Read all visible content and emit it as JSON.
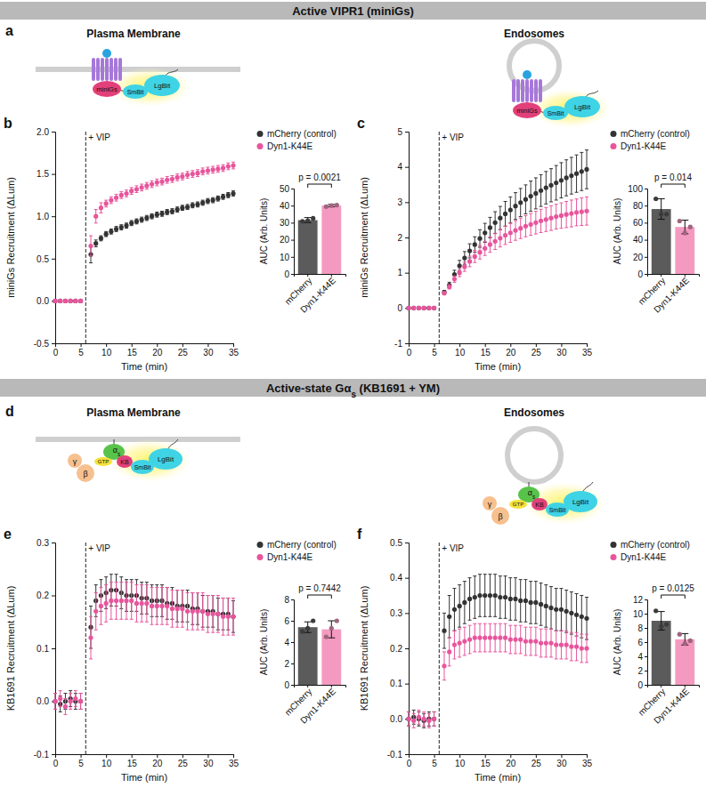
{
  "sections": [
    {
      "title": [
        {
          "text": "Active VIPR1 (miniGs)"
        }
      ],
      "panel": "a",
      "diagrams": [
        {
          "title": "Plasma Membrane",
          "labels": {
            "g": "miniGs",
            "sm": "SmBit",
            "lg": "LgBit"
          }
        },
        {
          "title": "Endosomes",
          "labels": {
            "g": "miniGs",
            "sm": "SmBit",
            "lg": "LgBit"
          }
        }
      ]
    },
    {
      "title": [
        {
          "text": "Active-state Gα"
        },
        {
          "text": "s",
          "sub": true
        },
        {
          "text": " (KB1691 + YM)"
        }
      ],
      "panel": "d",
      "diagrams": [
        {
          "title": "Plasma Membrane",
          "labels": {
            "gamma": "γ",
            "beta": "β",
            "alpha": "α",
            "alpha_sub": "s",
            "gtp": "GTP",
            "kb": "KB",
            "sm": "SmBit",
            "lg": "LgBit"
          }
        },
        {
          "title": "Endosomes",
          "labels": {
            "gamma": "γ",
            "beta": "β",
            "alpha": "α",
            "alpha_sub": "s",
            "gtp": "GTP",
            "kb": "KB",
            "sm": "SmBit",
            "lg": "LgBit"
          }
        }
      ]
    }
  ],
  "chart_data": [
    {
      "type": "scatter",
      "panel": "b",
      "xlabel": "Time (min)",
      "ylabel": "miniGs Recruitment (ΔLum)",
      "legend": "right",
      "marker": "circle",
      "x": [
        0,
        1,
        2,
        3,
        4,
        5,
        7,
        8,
        9,
        10,
        11,
        12,
        13,
        14,
        15,
        16,
        17,
        18,
        19,
        20,
        21,
        22,
        23,
        24,
        25,
        26,
        27,
        28,
        29,
        30,
        31,
        32,
        33,
        34,
        35
      ],
      "xlim": [
        0,
        35
      ],
      "xticks": [
        0,
        5,
        10,
        15,
        20,
        25,
        30,
        35
      ],
      "ylim": [
        -0.5,
        2
      ],
      "yticks": [
        -0.5,
        {
          "value": 0,
          "label": "0.0"
        },
        0.5,
        {
          "value": 1,
          "label": "1.0"
        },
        1.5,
        {
          "value": 2,
          "label": "2.0"
        }
      ],
      "annotations": [
        {
          "text": "+ VIP",
          "x": 6
        }
      ],
      "series": [
        {
          "name": "mCherry (control)",
          "color": "#333333",
          "values": [
            0,
            0,
            0,
            0,
            0,
            0,
            0.55,
            0.68,
            0.74,
            0.79,
            0.82,
            0.85,
            0.87,
            0.89,
            0.92,
            0.94,
            0.96,
            0.98,
            1.0,
            1.02,
            1.03,
            1.05,
            1.06,
            1.08,
            1.1,
            1.11,
            1.13,
            1.14,
            1.16,
            1.18,
            1.19,
            1.21,
            1.23,
            1.25,
            1.27
          ],
          "errors": [
            0.01,
            0.01,
            0.01,
            0.01,
            0.01,
            0.01,
            0.1,
            0.04,
            0.03,
            0.03,
            0.03,
            0.03,
            0.03,
            0.03,
            0.03,
            0.03,
            0.03,
            0.03,
            0.03,
            0.03,
            0.03,
            0.03,
            0.03,
            0.03,
            0.03,
            0.03,
            0.03,
            0.03,
            0.03,
            0.03,
            0.03,
            0.03,
            0.03,
            0.03,
            0.03
          ]
        },
        {
          "name": "Dyn1-K44E",
          "color": "#e8559c",
          "values": [
            0,
            0,
            0,
            0,
            0,
            0,
            0.65,
            1.0,
            1.1,
            1.15,
            1.19,
            1.22,
            1.25,
            1.27,
            1.3,
            1.32,
            1.34,
            1.36,
            1.38,
            1.4,
            1.41,
            1.43,
            1.44,
            1.46,
            1.47,
            1.49,
            1.5,
            1.51,
            1.53,
            1.54,
            1.55,
            1.56,
            1.57,
            1.59,
            1.6
          ],
          "errors": [
            0.01,
            0.01,
            0.01,
            0.01,
            0.01,
            0.01,
            0.12,
            0.08,
            0.06,
            0.04,
            0.04,
            0.04,
            0.04,
            0.04,
            0.04,
            0.04,
            0.04,
            0.04,
            0.04,
            0.04,
            0.04,
            0.04,
            0.04,
            0.04,
            0.04,
            0.04,
            0.04,
            0.04,
            0.04,
            0.04,
            0.04,
            0.04,
            0.04,
            0.04,
            0.04
          ]
        }
      ]
    },
    {
      "type": "bar",
      "ylabel": "AUC (Arb. Units)",
      "categories": [
        "mCherry",
        "Dyn1-K44E"
      ],
      "values": [
        31.5,
        40
      ],
      "errors": [
        1.5,
        0.7
      ],
      "colors": [
        "#5b5b5b",
        "#f49ac1"
      ],
      "replicates": [
        [
          30.8,
          31.2,
          32.6
        ],
        [
          39.4,
          40.0,
          40.3
        ]
      ],
      "ylim": [
        0,
        50
      ],
      "yticks": [
        0,
        10,
        20,
        30,
        40,
        50
      ],
      "annotations": [
        {
          "text": "p = 0.0021"
        }
      ]
    },
    {
      "type": "scatter",
      "panel": "c",
      "xlabel": "Time (min)",
      "ylabel": "miniGs Recruitment (ΔLum)",
      "legend": "right",
      "marker": "circle",
      "x": [
        0,
        1,
        2,
        3,
        4,
        5,
        7,
        8,
        9,
        10,
        11,
        12,
        13,
        14,
        15,
        16,
        17,
        18,
        19,
        20,
        21,
        22,
        23,
        24,
        25,
        26,
        27,
        28,
        29,
        30,
        31,
        32,
        33,
        34,
        35
      ],
      "xlim": [
        0,
        35
      ],
      "xticks": [
        0,
        5,
        10,
        15,
        20,
        25,
        30,
        35
      ],
      "ylim": [
        -1,
        5
      ],
      "yticks": [
        -1,
        0,
        1,
        2,
        3,
        4,
        5
      ],
      "annotations": [
        {
          "text": "+ VIP",
          "x": 6
        }
      ],
      "series": [
        {
          "name": "mCherry (control)",
          "color": "#333333",
          "values": [
            0,
            0,
            0,
            0,
            0,
            0,
            0.45,
            0.65,
            0.95,
            1.2,
            1.42,
            1.62,
            1.8,
            1.97,
            2.13,
            2.28,
            2.42,
            2.55,
            2.67,
            2.78,
            2.89,
            2.99,
            3.08,
            3.17,
            3.25,
            3.33,
            3.41,
            3.48,
            3.55,
            3.62,
            3.69,
            3.75,
            3.81,
            3.87,
            3.93
          ],
          "errors": [
            0.02,
            0.02,
            0.02,
            0.02,
            0.02,
            0.02,
            0.05,
            0.08,
            0.12,
            0.15,
            0.18,
            0.2,
            0.22,
            0.25,
            0.27,
            0.29,
            0.31,
            0.33,
            0.35,
            0.37,
            0.38,
            0.4,
            0.41,
            0.43,
            0.44,
            0.45,
            0.46,
            0.47,
            0.49,
            0.5,
            0.51,
            0.52,
            0.53,
            0.54,
            0.55
          ]
        },
        {
          "name": "Dyn1-K44E",
          "color": "#e8559c",
          "values": [
            0,
            0,
            0,
            0,
            0,
            0,
            0.42,
            0.6,
            0.82,
            1.0,
            1.17,
            1.32,
            1.46,
            1.58,
            1.69,
            1.8,
            1.89,
            1.98,
            2.06,
            2.13,
            2.2,
            2.26,
            2.32,
            2.37,
            2.42,
            2.47,
            2.51,
            2.55,
            2.59,
            2.62,
            2.65,
            2.68,
            2.71,
            2.73,
            2.75
          ],
          "errors": [
            0.02,
            0.02,
            0.02,
            0.02,
            0.02,
            0.02,
            0.04,
            0.06,
            0.09,
            0.11,
            0.13,
            0.15,
            0.17,
            0.19,
            0.2,
            0.22,
            0.23,
            0.25,
            0.26,
            0.27,
            0.28,
            0.29,
            0.3,
            0.31,
            0.32,
            0.33,
            0.34,
            0.35,
            0.35,
            0.36,
            0.37,
            0.38,
            0.38,
            0.39,
            0.4
          ]
        }
      ]
    },
    {
      "type": "bar",
      "ylabel": "AUC (Arb. Units)",
      "categories": [
        "mCherry",
        "Dyn1-K44E"
      ],
      "values": [
        76,
        55
      ],
      "errors": [
        12,
        8
      ],
      "colors": [
        "#5b5b5b",
        "#f49ac1"
      ],
      "replicates": [
        [
          88,
          70,
          70
        ],
        [
          62,
          48,
          55
        ]
      ],
      "ylim": [
        0,
        100
      ],
      "yticks": [
        0,
        20,
        40,
        60,
        80,
        100
      ],
      "annotations": [
        {
          "text": "p = 0.014"
        }
      ]
    },
    {
      "type": "scatter",
      "panel": "e",
      "xlabel": "Time (min)",
      "ylabel": "KB1691 Recruitment (ΔLum)",
      "legend": "right",
      "marker": "circle",
      "x": [
        0,
        1,
        2,
        3,
        4,
        5,
        7,
        8,
        9,
        10,
        11,
        12,
        13,
        14,
        15,
        16,
        17,
        18,
        19,
        20,
        21,
        22,
        23,
        24,
        25,
        26,
        27,
        28,
        29,
        30,
        31,
        32,
        33,
        34,
        35
      ],
      "xlim": [
        0,
        35
      ],
      "xticks": [
        0,
        5,
        10,
        15,
        20,
        25,
        30,
        35
      ],
      "ylim": [
        -0.1,
        0.3
      ],
      "yticks": [
        -0.1,
        {
          "value": 0,
          "label": "0.0"
        },
        0.1,
        0.2,
        0.3
      ],
      "annotations": [
        {
          "text": "+ VIP",
          "x": 6
        }
      ],
      "series": [
        {
          "name": "mCherry (control)",
          "color": "#333333",
          "values": [
            0,
            -0.005,
            0,
            0.005,
            0,
            0,
            0.14,
            0.19,
            0.2,
            0.205,
            0.21,
            0.21,
            0.205,
            0.2,
            0.2,
            0.2,
            0.195,
            0.195,
            0.19,
            0.19,
            0.19,
            0.185,
            0.185,
            0.18,
            0.18,
            0.18,
            0.175,
            0.175,
            0.17,
            0.17,
            0.17,
            0.165,
            0.165,
            0.165,
            0.16
          ],
          "errors": [
            0.015,
            0.015,
            0.015,
            0.015,
            0.015,
            0.015,
            0.04,
            0.03,
            0.03,
            0.03,
            0.03,
            0.03,
            0.03,
            0.03,
            0.03,
            0.03,
            0.03,
            0.03,
            0.03,
            0.03,
            0.03,
            0.03,
            0.03,
            0.03,
            0.03,
            0.03,
            0.03,
            0.03,
            0.03,
            0.03,
            0.03,
            0.03,
            0.03,
            0.03,
            0.03
          ]
        },
        {
          "name": "Dyn1-K44E",
          "color": "#e8559c",
          "values": [
            0,
            0.005,
            -0.01,
            0,
            0.005,
            0,
            0.12,
            0.17,
            0.18,
            0.185,
            0.19,
            0.19,
            0.19,
            0.19,
            0.19,
            0.185,
            0.185,
            0.185,
            0.18,
            0.18,
            0.18,
            0.18,
            0.175,
            0.175,
            0.175,
            0.17,
            0.17,
            0.17,
            0.17,
            0.165,
            0.165,
            0.165,
            0.16,
            0.16,
            0.16
          ],
          "errors": [
            0.015,
            0.015,
            0.015,
            0.015,
            0.015,
            0.015,
            0.04,
            0.035,
            0.035,
            0.035,
            0.035,
            0.035,
            0.035,
            0.035,
            0.035,
            0.035,
            0.035,
            0.035,
            0.035,
            0.035,
            0.035,
            0.035,
            0.035,
            0.035,
            0.035,
            0.035,
            0.035,
            0.035,
            0.035,
            0.035,
            0.035,
            0.035,
            0.035,
            0.035,
            0.035
          ]
        }
      ]
    },
    {
      "type": "bar",
      "ylabel": "AUC (Arb. Units)",
      "categories": [
        "mCherry",
        "Dyn1-K44E"
      ],
      "values": [
        5.4,
        5.2
      ],
      "errors": [
        0.5,
        0.8
      ],
      "colors": [
        "#5b5b5b",
        "#f49ac1"
      ],
      "replicates": [
        [
          5.0,
          5.3,
          6.0
        ],
        [
          4.5,
          5.3,
          6.0
        ]
      ],
      "ylim": [
        0,
        8
      ],
      "yticks": [
        0,
        2,
        4,
        6,
        8
      ],
      "annotations": [
        {
          "text": "p = 0.7442"
        }
      ]
    },
    {
      "type": "scatter",
      "panel": "f",
      "xlabel": "Time (min)",
      "ylabel": "KB1691 Recruitment (ΔLum)",
      "legend": "right",
      "marker": "circle",
      "x": [
        0,
        1,
        2,
        3,
        4,
        5,
        7,
        8,
        9,
        10,
        11,
        12,
        13,
        14,
        15,
        16,
        17,
        18,
        19,
        20,
        21,
        22,
        23,
        24,
        25,
        26,
        27,
        28,
        29,
        30,
        31,
        32,
        33,
        34,
        35
      ],
      "xlim": [
        0,
        35
      ],
      "xticks": [
        0,
        5,
        10,
        15,
        20,
        25,
        30,
        35
      ],
      "ylim": [
        -0.1,
        0.5
      ],
      "yticks": [
        -0.1,
        {
          "value": 0,
          "label": "0.0"
        },
        0.1,
        0.2,
        0.3,
        0.4,
        0.5
      ],
      "annotations": [
        {
          "text": "+ VIP",
          "x": 6
        }
      ],
      "series": [
        {
          "name": "mCherry (control)",
          "color": "#333333",
          "values": [
            0,
            0.005,
            0,
            -0.005,
            0,
            0,
            0.25,
            0.29,
            0.31,
            0.32,
            0.33,
            0.34,
            0.345,
            0.35,
            0.35,
            0.35,
            0.35,
            0.345,
            0.345,
            0.34,
            0.34,
            0.335,
            0.335,
            0.33,
            0.33,
            0.325,
            0.32,
            0.315,
            0.31,
            0.31,
            0.305,
            0.3,
            0.295,
            0.29,
            0.285
          ],
          "errors": [
            0.02,
            0.02,
            0.02,
            0.02,
            0.02,
            0.02,
            0.05,
            0.06,
            0.06,
            0.06,
            0.06,
            0.06,
            0.06,
            0.06,
            0.06,
            0.06,
            0.06,
            0.06,
            0.06,
            0.06,
            0.06,
            0.06,
            0.06,
            0.06,
            0.06,
            0.06,
            0.06,
            0.06,
            0.06,
            0.06,
            0.06,
            0.06,
            0.06,
            0.06,
            0.06
          ]
        },
        {
          "name": "Dyn1-K44E",
          "color": "#e8559c",
          "values": [
            0,
            -0.005,
            0.005,
            0,
            -0.005,
            0,
            0.15,
            0.19,
            0.21,
            0.215,
            0.22,
            0.225,
            0.23,
            0.23,
            0.23,
            0.23,
            0.23,
            0.23,
            0.23,
            0.225,
            0.225,
            0.225,
            0.22,
            0.22,
            0.22,
            0.215,
            0.215,
            0.215,
            0.21,
            0.21,
            0.21,
            0.205,
            0.205,
            0.2,
            0.2
          ],
          "errors": [
            0.02,
            0.02,
            0.02,
            0.02,
            0.02,
            0.02,
            0.04,
            0.04,
            0.04,
            0.04,
            0.04,
            0.04,
            0.04,
            0.04,
            0.04,
            0.04,
            0.04,
            0.04,
            0.04,
            0.04,
            0.04,
            0.04,
            0.04,
            0.04,
            0.04,
            0.04,
            0.04,
            0.04,
            0.04,
            0.04,
            0.04,
            0.04,
            0.04,
            0.04,
            0.04
          ]
        }
      ]
    },
    {
      "type": "bar",
      "ylabel": "AUC (Arb. Units)",
      "categories": [
        "mCherry",
        "Dyn1-K44E"
      ],
      "values": [
        9,
        6.4
      ],
      "errors": [
        1.3,
        0.8
      ],
      "colors": [
        "#5b5b5b",
        "#f49ac1"
      ],
      "replicates": [
        [
          10.4,
          8.2,
          8.5
        ],
        [
          7.1,
          5.8,
          6.2
        ]
      ],
      "ylim": [
        0,
        12
      ],
      "yticks": [
        0,
        2,
        4,
        6,
        8,
        10,
        12
      ],
      "annotations": [
        {
          "text": "p = 0.0125"
        }
      ]
    }
  ]
}
